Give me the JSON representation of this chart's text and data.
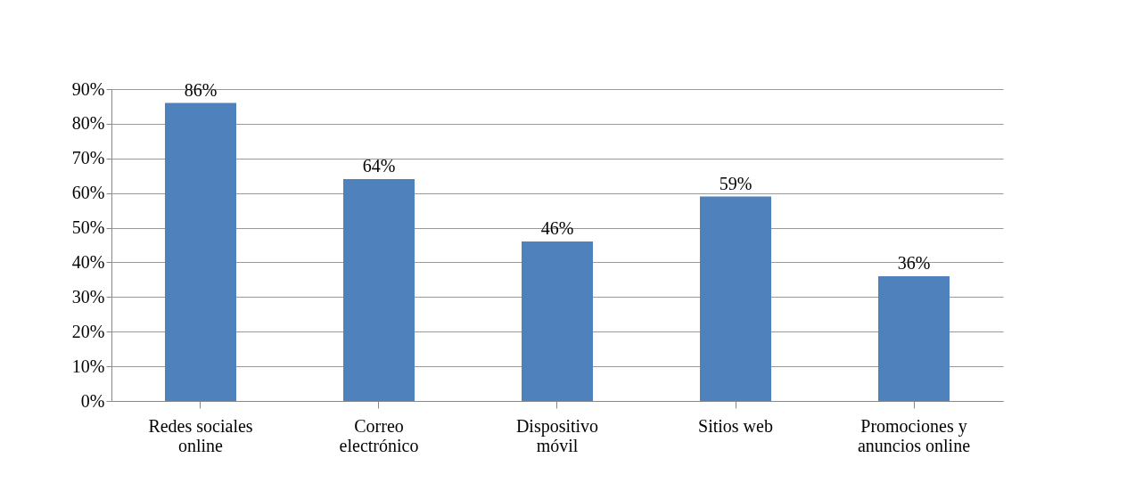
{
  "chart_data": {
    "type": "bar",
    "categories": [
      "Redes sociales online",
      "Correo electrónico",
      "Dispositivo móvil",
      "Sitios web",
      "Promociones y anuncios online"
    ],
    "values": [
      86,
      64,
      46,
      59,
      36
    ],
    "value_labels": [
      "86%",
      "64%",
      "46%",
      "59%",
      "36%"
    ],
    "color": "#4f81bd",
    "ylim": [
      0,
      90
    ],
    "yticks": [
      {
        "value": 0,
        "label": "0%"
      },
      {
        "value": 10,
        "label": "10%"
      },
      {
        "value": 20,
        "label": "20%"
      },
      {
        "value": 30,
        "label": "30%"
      },
      {
        "value": 40,
        "label": "40%"
      },
      {
        "value": 50,
        "label": "50%"
      },
      {
        "value": 60,
        "label": "60%"
      },
      {
        "value": 70,
        "label": "70%"
      },
      {
        "value": 80,
        "label": "80%"
      },
      {
        "value": 90,
        "label": "90%"
      }
    ],
    "grid": "y"
  }
}
